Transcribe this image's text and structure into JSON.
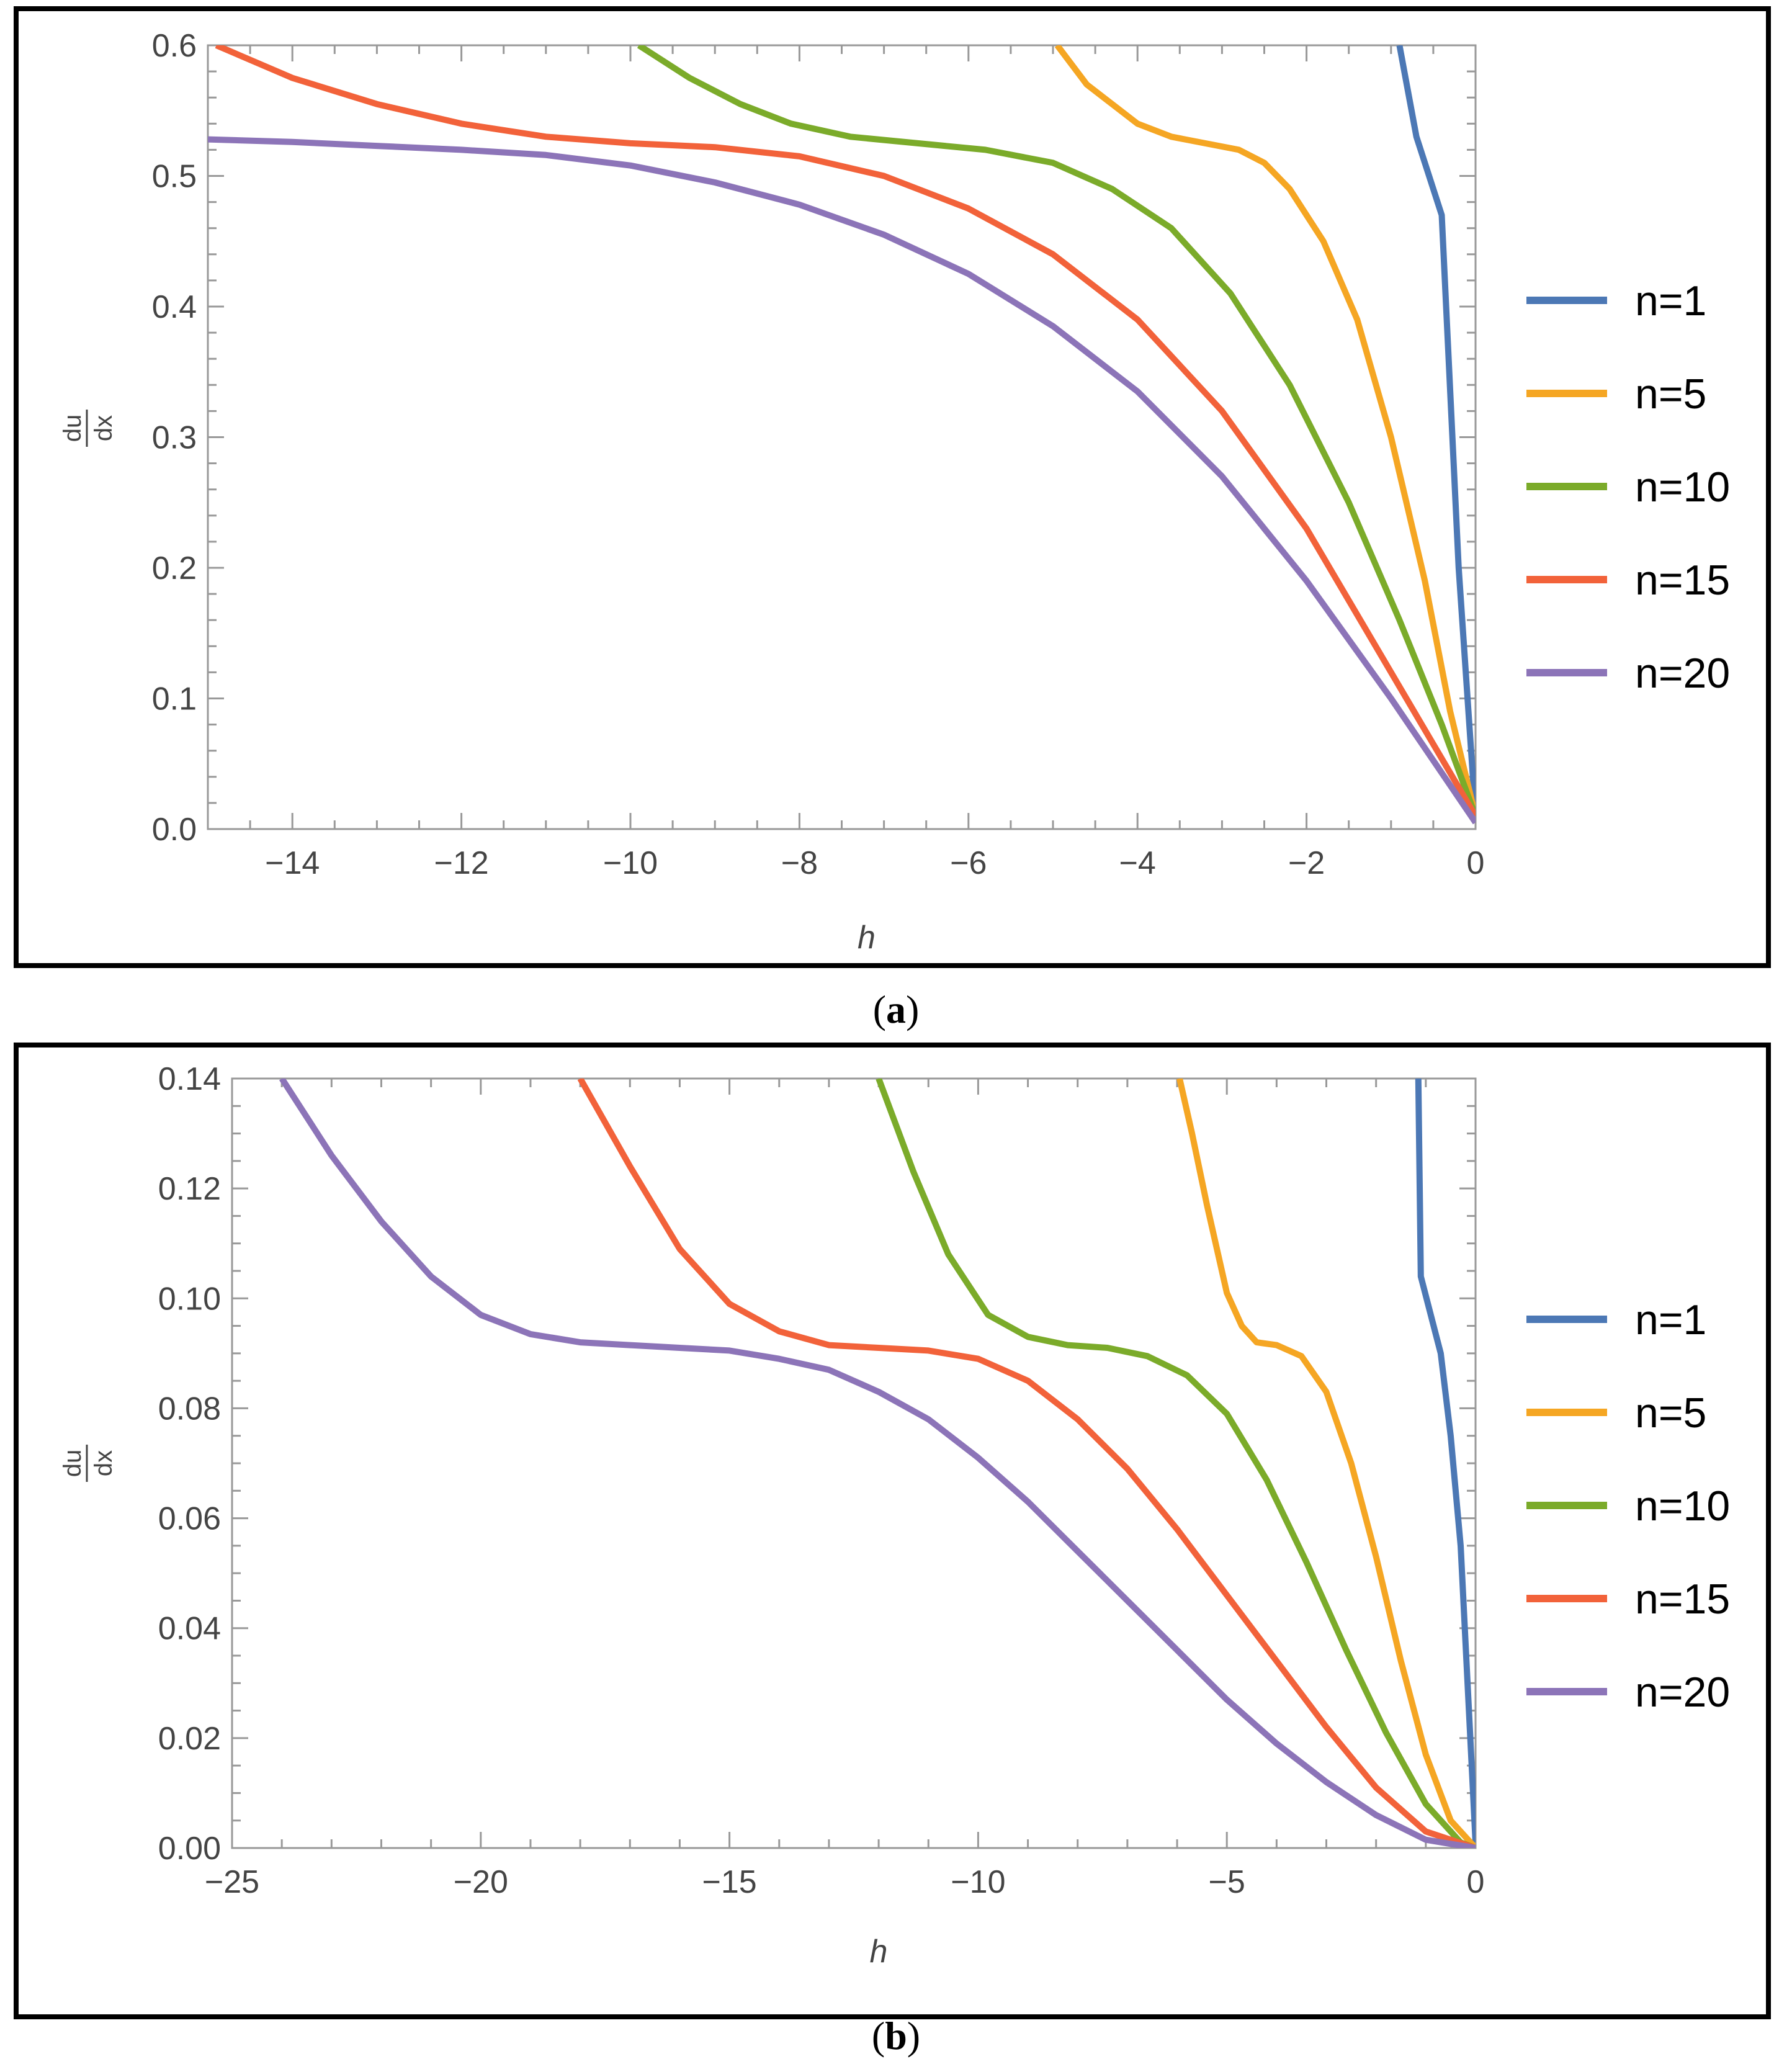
{
  "captions": {
    "a": "a",
    "b": "b"
  },
  "chart_data": [
    {
      "id": "a",
      "type": "line",
      "title": "",
      "xlabel": "h",
      "ylabel_numerator": "du",
      "ylabel_denominator": "dx",
      "xlim": [
        -15,
        0
      ],
      "ylim": [
        0,
        0.6
      ],
      "xticks": [
        -14,
        -12,
        -10,
        -8,
        -6,
        -4,
        -2,
        0
      ],
      "xtick_labels": [
        "−14",
        "−12",
        "−10",
        "−8",
        "−6",
        "−4",
        "−2",
        "0"
      ],
      "yticks": [
        0,
        0.1,
        0.2,
        0.3,
        0.4,
        0.5,
        0.6
      ],
      "ytick_labels": [
        "0.0",
        "0.1",
        "0.2",
        "0.3",
        "0.4",
        "0.5",
        "0.6"
      ],
      "legend_position": "right",
      "series": [
        {
          "name": "n=1",
          "color": "#4c78b5",
          "x": [
            -0.9,
            -0.7,
            -0.4,
            -0.2,
            0
          ],
          "y": [
            0.6,
            0.53,
            0.47,
            0.2,
            0.01
          ]
        },
        {
          "name": "n=5",
          "color": "#f5a623",
          "x": [
            -4.95,
            -4.6,
            -4.3,
            -4.0,
            -3.6,
            -3.2,
            -2.8,
            -2.5,
            -2.2,
            -1.8,
            -1.4,
            -1.0,
            -0.6,
            -0.3,
            0
          ],
          "y": [
            0.6,
            0.57,
            0.555,
            0.54,
            0.53,
            0.525,
            0.52,
            0.51,
            0.49,
            0.45,
            0.39,
            0.3,
            0.19,
            0.09,
            0.01
          ]
        },
        {
          "name": "n=10",
          "color": "#7bab2a",
          "x": [
            -9.9,
            -9.3,
            -8.7,
            -8.1,
            -7.4,
            -6.6,
            -5.8,
            -5.0,
            -4.3,
            -3.6,
            -2.9,
            -2.2,
            -1.5,
            -0.9,
            -0.4,
            0
          ],
          "y": [
            0.6,
            0.575,
            0.555,
            0.54,
            0.53,
            0.525,
            0.52,
            0.51,
            0.49,
            0.46,
            0.41,
            0.34,
            0.25,
            0.16,
            0.08,
            0.01
          ]
        },
        {
          "name": "n=15",
          "color": "#f2623a",
          "x": [
            -14.9,
            -14.0,
            -13.0,
            -12.0,
            -11.0,
            -10.0,
            -9.0,
            -8.0,
            -7.0,
            -6.0,
            -5.0,
            -4.0,
            -3.0,
            -2.0,
            -1.0,
            0
          ],
          "y": [
            0.6,
            0.575,
            0.555,
            0.54,
            0.53,
            0.525,
            0.522,
            0.515,
            0.5,
            0.475,
            0.44,
            0.39,
            0.32,
            0.23,
            0.12,
            0.01
          ]
        },
        {
          "name": "n=20",
          "color": "#8c74b8",
          "x": [
            -15.0,
            -14.0,
            -13.0,
            -12.0,
            -11.0,
            -10.0,
            -9.0,
            -8.0,
            -7.0,
            -6.0,
            -5.0,
            -4.0,
            -3.0,
            -2.0,
            -1.0,
            0
          ],
          "y": [
            0.528,
            0.526,
            0.523,
            0.52,
            0.516,
            0.508,
            0.495,
            0.478,
            0.455,
            0.425,
            0.385,
            0.335,
            0.27,
            0.19,
            0.1,
            0.005
          ]
        }
      ]
    },
    {
      "id": "b",
      "type": "line",
      "title": "",
      "xlabel": "h",
      "ylabel_numerator": "du",
      "ylabel_denominator": "dx",
      "xlim": [
        -25,
        0
      ],
      "ylim": [
        0,
        0.14
      ],
      "xticks": [
        -25,
        -20,
        -15,
        -10,
        -5,
        0
      ],
      "xtick_labels": [
        "−25",
        "−20",
        "−15",
        "−10",
        "−5",
        "0"
      ],
      "yticks": [
        0,
        0.02,
        0.04,
        0.06,
        0.08,
        0.1,
        0.12,
        0.14
      ],
      "ytick_labels": [
        "0.00",
        "0.02",
        "0.04",
        "0.06",
        "0.08",
        "0.10",
        "0.12",
        "0.14"
      ],
      "legend_position": "right",
      "series": [
        {
          "name": "n=1",
          "color": "#4c78b5",
          "x": [
            -1.15,
            -1.1,
            -0.7,
            -0.5,
            -0.3,
            0
          ],
          "y": [
            0.14,
            0.104,
            0.09,
            0.075,
            0.055,
            0.001
          ]
        },
        {
          "name": "n=5",
          "color": "#f5a623",
          "x": [
            -5.95,
            -5.7,
            -5.4,
            -5.0,
            -4.7,
            -4.4,
            -4.0,
            -3.5,
            -3.0,
            -2.5,
            -2.0,
            -1.5,
            -1.0,
            -0.5,
            0
          ],
          "y": [
            0.14,
            0.13,
            0.117,
            0.101,
            0.095,
            0.092,
            0.0915,
            0.0895,
            0.083,
            0.07,
            0.053,
            0.034,
            0.017,
            0.005,
            0
          ]
        },
        {
          "name": "n=10",
          "color": "#7bab2a",
          "x": [
            -12.0,
            -11.3,
            -10.6,
            -9.8,
            -9.0,
            -8.2,
            -7.4,
            -6.6,
            -5.8,
            -5.0,
            -4.2,
            -3.4,
            -2.6,
            -1.8,
            -1.0,
            -0.3,
            0
          ],
          "y": [
            0.14,
            0.123,
            0.108,
            0.097,
            0.093,
            0.0915,
            0.091,
            0.0895,
            0.086,
            0.079,
            0.067,
            0.052,
            0.036,
            0.021,
            0.008,
            0.001,
            0
          ]
        },
        {
          "name": "n=15",
          "color": "#f2623a",
          "x": [
            -18.0,
            -17.0,
            -16.0,
            -15.0,
            -14.0,
            -13.0,
            -12.0,
            -11.0,
            -10.0,
            -9.0,
            -8.0,
            -7.0,
            -6.0,
            -5.0,
            -4.0,
            -3.0,
            -2.0,
            -1.0,
            0
          ],
          "y": [
            0.14,
            0.124,
            0.109,
            0.099,
            0.094,
            0.0915,
            0.091,
            0.0905,
            0.089,
            0.085,
            0.078,
            0.069,
            0.058,
            0.046,
            0.034,
            0.022,
            0.011,
            0.003,
            0
          ]
        },
        {
          "name": "n=20",
          "color": "#8c74b8",
          "x": [
            -24.0,
            -23.0,
            -22.0,
            -21.0,
            -20.0,
            -19.0,
            -18.0,
            -17.0,
            -16.0,
            -15.0,
            -14.0,
            -13.0,
            -12.0,
            -11.0,
            -10.0,
            -9.0,
            -8.0,
            -7.0,
            -6.0,
            -5.0,
            -4.0,
            -3.0,
            -2.0,
            -1.0,
            0
          ],
          "y": [
            0.14,
            0.126,
            0.114,
            0.104,
            0.097,
            0.0935,
            0.092,
            0.0915,
            0.091,
            0.0905,
            0.089,
            0.087,
            0.083,
            0.078,
            0.071,
            0.063,
            0.054,
            0.045,
            0.036,
            0.027,
            0.019,
            0.012,
            0.006,
            0.0015,
            0
          ]
        }
      ]
    }
  ]
}
